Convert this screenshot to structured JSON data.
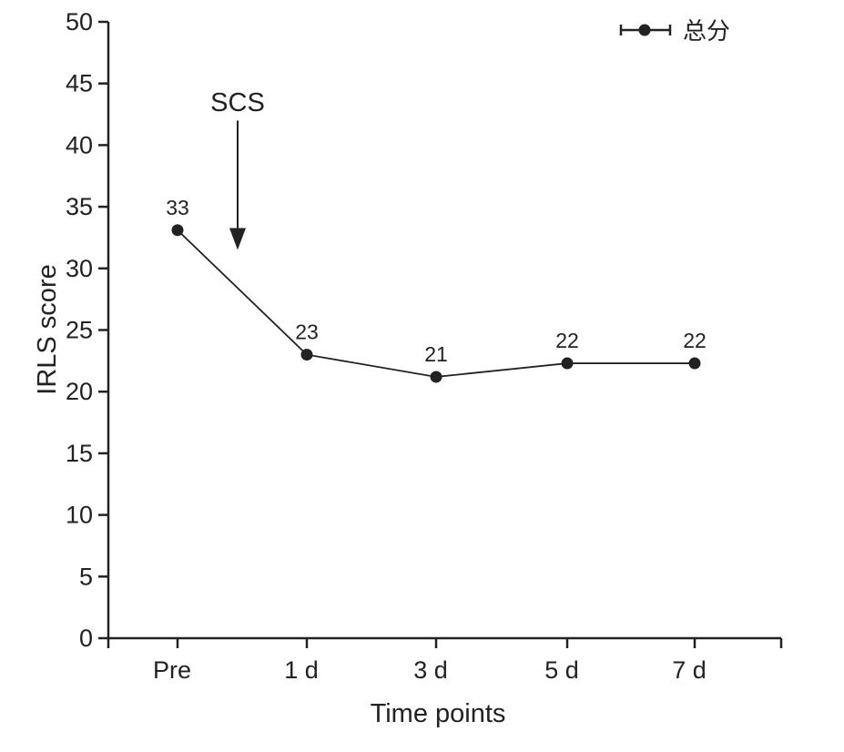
{
  "chart_data": {
    "type": "line",
    "categories": [
      "Pre",
      "1 d",
      "3 d",
      "5 d",
      "7 d"
    ],
    "series": [
      {
        "name": "总分",
        "values": [
          33.1,
          23.0,
          21.2,
          22.3,
          22.3
        ],
        "labels": [
          "33",
          "23",
          "21",
          "22",
          "22"
        ]
      }
    ],
    "xlabel": "Time points",
    "ylabel": "IRLS score",
    "ylim": [
      0,
      50
    ],
    "yticks": [
      0,
      5,
      10,
      15,
      20,
      25,
      30,
      35,
      40,
      45,
      50
    ],
    "annotation": {
      "text": "SCS",
      "type": "arrow",
      "between": [
        "Pre",
        "1 d"
      ],
      "arrow_from_y": 42,
      "arrow_to_y": 31.5
    },
    "legend_position": "top-right",
    "grid": false,
    "colors": {
      "line": "#222222",
      "marker": "#222222",
      "axis": "#222222"
    }
  }
}
